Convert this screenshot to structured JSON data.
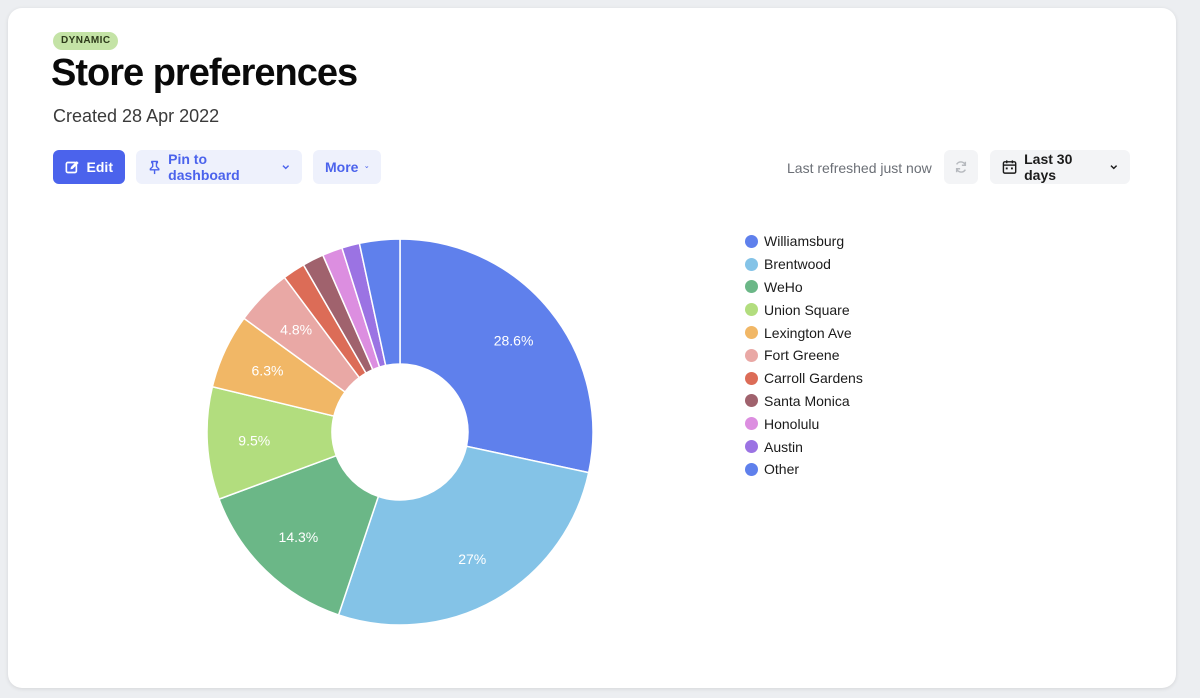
{
  "header": {
    "badge": "DYNAMIC",
    "title": "Store preferences",
    "created": "Created 28 Apr 2022"
  },
  "toolbar": {
    "edit_label": "Edit",
    "pin_label": "Pin to dashboard",
    "more_label": "More",
    "refreshed_text": "Last refreshed just now",
    "range_label": "Last 30 days"
  },
  "colors": {
    "accent": "#4b63ec",
    "badge_bg": "#c4e3a6"
  },
  "chart_data": {
    "type": "pie",
    "donut": true,
    "legend_position": "right",
    "categories": [
      "Williamsburg",
      "Brentwood",
      "WeHo",
      "Union Square",
      "Lexington Ave",
      "Fort Greene",
      "Carroll Gardens",
      "Santa Monica",
      "Honolulu",
      "Austin",
      "Other"
    ],
    "values": [
      28.6,
      27,
      14.3,
      9.5,
      6.3,
      4.8,
      1.9,
      1.8,
      1.7,
      1.5,
      3.4
    ],
    "labels": [
      "28.6%",
      "27%",
      "14.3%",
      "9.5%",
      "6.3%",
      "4.8%",
      "",
      "",
      "",
      "",
      ""
    ],
    "colors": [
      "#5f80ec",
      "#84c3e7",
      "#6bb787",
      "#b2dd7e",
      "#f1b766",
      "#e9a8a5",
      "#dc6c57",
      "#a0626d",
      "#dc8ee0",
      "#9b73e3",
      "#5f80ec"
    ]
  }
}
